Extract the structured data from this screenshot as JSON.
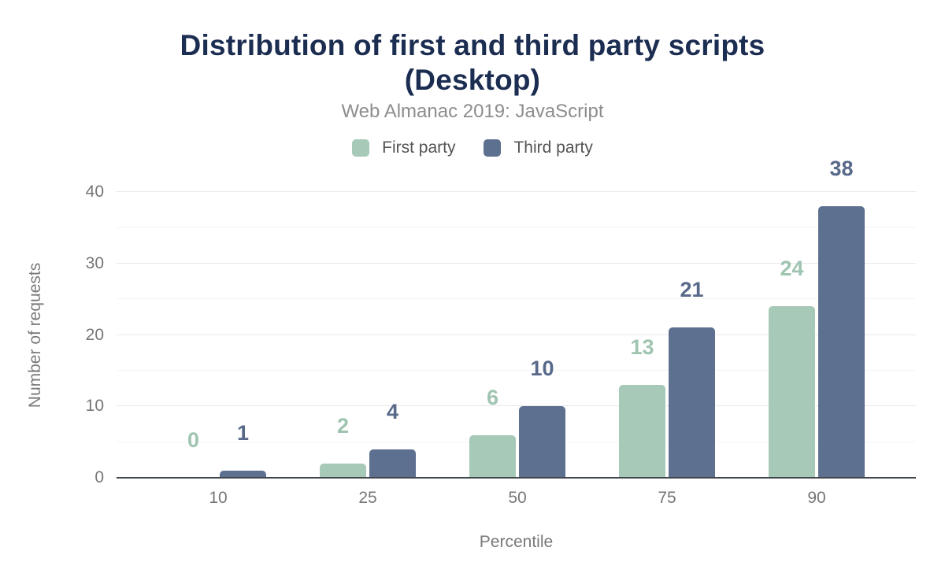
{
  "header": {
    "title_lines": [
      "Distribution of first and third party scripts",
      "(Desktop)"
    ],
    "subtitle": "Web Almanac 2019: JavaScript"
  },
  "legend": {
    "items": [
      {
        "label": "First party",
        "color": "#a7c9b7"
      },
      {
        "label": "Third party",
        "color": "#5e7090"
      }
    ]
  },
  "chart_data": {
    "type": "bar",
    "title": "Distribution of first and third party scripts (Desktop)",
    "subtitle": "Web Almanac 2019: JavaScript",
    "categories": [
      "10",
      "25",
      "50",
      "75",
      "90"
    ],
    "series": [
      {
        "name": "First party",
        "color": "#a7c9b7",
        "label_color": "#9fc4b0",
        "values": [
          0,
          2,
          6,
          13,
          24
        ]
      },
      {
        "name": "Third party",
        "color": "#5e7090",
        "label_color": "#58698a",
        "values": [
          1,
          4,
          10,
          21,
          38
        ]
      }
    ],
    "xlabel": "Percentile",
    "ylabel": "Number of requests",
    "ylim": [
      0,
      40
    ],
    "yticks": [
      0,
      10,
      20,
      30,
      40
    ],
    "minor_gridlines": [
      5,
      15,
      25,
      35
    ],
    "grid": "horizontal",
    "legend_position": "top",
    "colors": {
      "title": "#1c2d52",
      "subtitle": "#8d8d8d",
      "tick_text": "#767676",
      "axis_title_text": "#7a7a7a",
      "legend_text": "#545454",
      "axis_line": "#41464c",
      "gridline_major": "#e8e8e8",
      "gridline_minor": "#f5f5f5",
      "background": "#ffffff"
    }
  }
}
